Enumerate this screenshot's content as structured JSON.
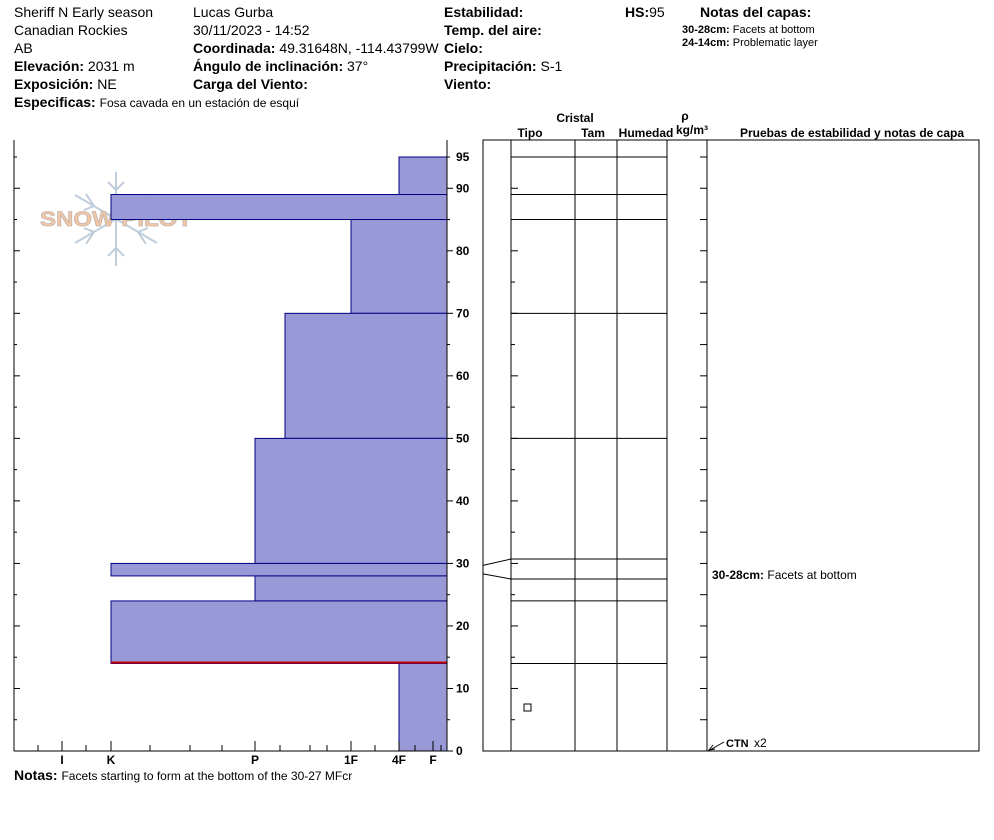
{
  "header": {
    "location": "Sheriff N Early season",
    "range": "Canadian Rockies",
    "state": "AB",
    "elevation_label": "Elevación:",
    "elevation_value": "2031 m",
    "aspect_label": "Exposición:",
    "aspect_value": "NE",
    "specifics_label": "Especificas:",
    "specifics_value": "Fosa cavada en un estación de esquí",
    "observer": "Lucas Gurba",
    "datetime": "30/11/2023 - 14:52",
    "coord_label": "Coordinada:",
    "coord_value": "49.31648N, -114.43799W",
    "slope_label": "Ángulo de inclinación:",
    "slope_value": "37°",
    "wind_load_label": "Carga del Viento:",
    "stability_label": "Estabilidad:",
    "air_temp_label": "Temp. del aire:",
    "sky_label": "Cielo:",
    "precip_label": "Precipitación:",
    "precip_value": "S-1",
    "wind_label": "Viento:",
    "hs_label": "HS:",
    "hs_value": "95",
    "layer_notes_title": "Notas del capas:",
    "layer_notes": [
      {
        "range": "30-28cm:",
        "text": "Facets at bottom"
      },
      {
        "range": "24-14cm:",
        "text": "Problematic layer"
      }
    ]
  },
  "logo": {
    "text": "SNOW PILOT"
  },
  "column_headers": {
    "crystal": "Cristal",
    "type": "Tipo",
    "size": "Tam",
    "moisture": "Humedad",
    "rho": "ρ",
    "density_unit": "kg/m³",
    "tests": "Pruebas de estabilidad y notas de capa"
  },
  "annotations": {
    "layer_note_range": "30-28cm:",
    "layer_note_text": "Facets at bottom",
    "test_label": "CTN",
    "test_count": "x2"
  },
  "notes": {
    "label": "Notas:",
    "text": "Facets starting to form at the bottom of the 30-27 MFcr"
  },
  "colors": {
    "layer_fill": "#9999d8",
    "layer_stroke": "#000080",
    "problem_line": "#cc0000"
  },
  "chart_data": {
    "type": "bar",
    "orientation": "horizontal",
    "ylabel": "",
    "xlabel": "",
    "ylim": [
      0,
      95
    ],
    "y_ticks": [
      0,
      10,
      20,
      30,
      40,
      50,
      60,
      70,
      80,
      90,
      95
    ],
    "hardness_ticks": [
      "I",
      "K",
      "P",
      "1F",
      "4F",
      "F"
    ],
    "layers": [
      {
        "top": 95,
        "bottom": 89,
        "hardness": "F"
      },
      {
        "top": 89,
        "bottom": 85,
        "hardness": "K"
      },
      {
        "top": 85,
        "bottom": 70,
        "hardness": "1F"
      },
      {
        "top": 70,
        "bottom": 50,
        "hardness": "P+"
      },
      {
        "top": 50,
        "bottom": 30,
        "hardness": "P"
      },
      {
        "top": 30,
        "bottom": 28,
        "hardness": "K"
      },
      {
        "top": 28,
        "bottom": 24,
        "hardness": "P"
      },
      {
        "top": 24,
        "bottom": 14,
        "hardness": "K"
      },
      {
        "top": 14,
        "bottom": 0,
        "hardness": "4F"
      }
    ],
    "problem_layer_height": 14,
    "test_height": 0
  }
}
